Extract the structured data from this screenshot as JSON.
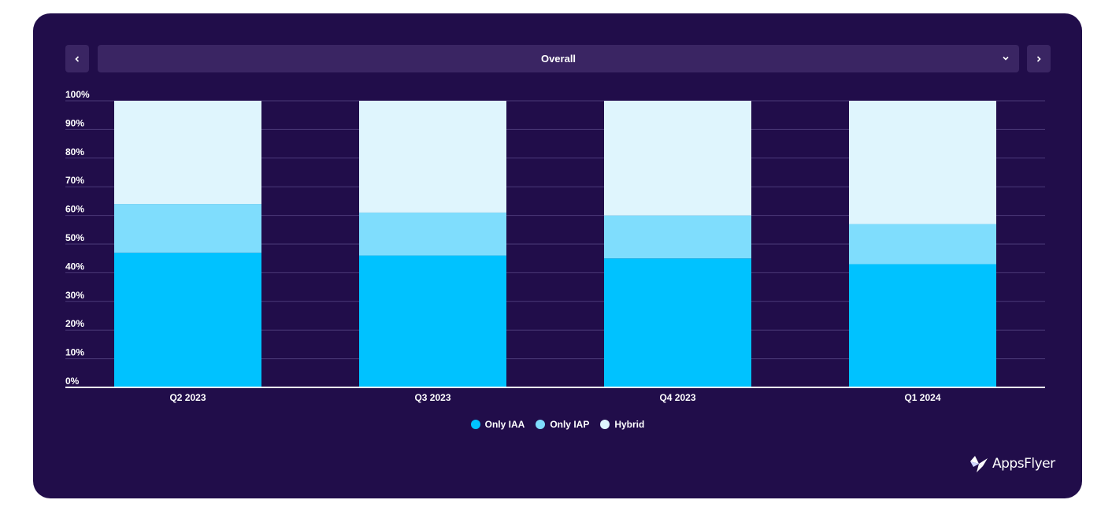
{
  "header": {
    "selector_value": "Overall",
    "prev_icon": "chevron-left-icon",
    "next_icon": "chevron-right-icon",
    "dropdown_icon": "chevron-down-icon"
  },
  "chart_data": {
    "type": "bar",
    "stacked": true,
    "categories": [
      "Q2 2023",
      "Q3 2023",
      "Q4 2023",
      "Q1 2024"
    ],
    "series": [
      {
        "name": "Only IAA",
        "color": "#00c2ff",
        "values": [
          47,
          46,
          45,
          43
        ]
      },
      {
        "name": "Only IAP",
        "color": "#7fddfd",
        "values": [
          17,
          15,
          15,
          14
        ]
      },
      {
        "name": "Hybrid",
        "color": "#dff5fd",
        "values": [
          36,
          39,
          40,
          43
        ]
      }
    ],
    "y_ticks": [
      "0%",
      "10%",
      "20%",
      "30%",
      "40%",
      "50%",
      "60%",
      "70%",
      "80%",
      "90%",
      "100%"
    ],
    "ylim": [
      0,
      100
    ],
    "grid": true,
    "legend_position": "bottom-center"
  },
  "brand": {
    "name": "AppsFlyer"
  }
}
